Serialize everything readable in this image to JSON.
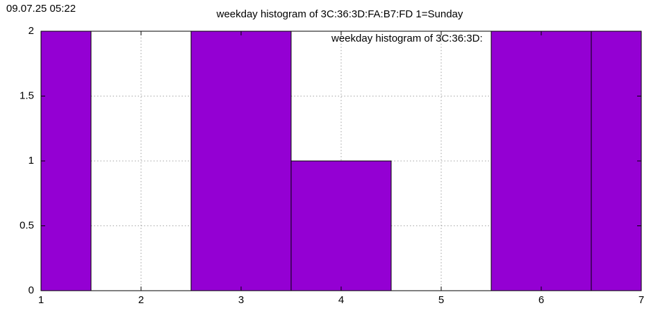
{
  "timestamp": "09.07.25 05:22",
  "chart_data": {
    "type": "bar",
    "title": "weekday histogram of 3C:36:3D:FA:B7:FD 1=Sunday",
    "x": [
      1,
      2,
      3,
      4,
      5,
      6,
      7
    ],
    "series": [
      {
        "name": "weekday histogram of 3C:36:3D:",
        "color": "#9400d3",
        "values": [
          2,
          0,
          2,
          1,
          0,
          2,
          2
        ]
      }
    ],
    "xlim": [
      1,
      7
    ],
    "xticks": [
      1,
      2,
      3,
      4,
      5,
      6,
      7
    ],
    "ylim": [
      0,
      2
    ],
    "yticks": [
      0,
      0.5,
      1,
      1.5,
      2
    ],
    "grid": true,
    "legend": "top-right"
  }
}
